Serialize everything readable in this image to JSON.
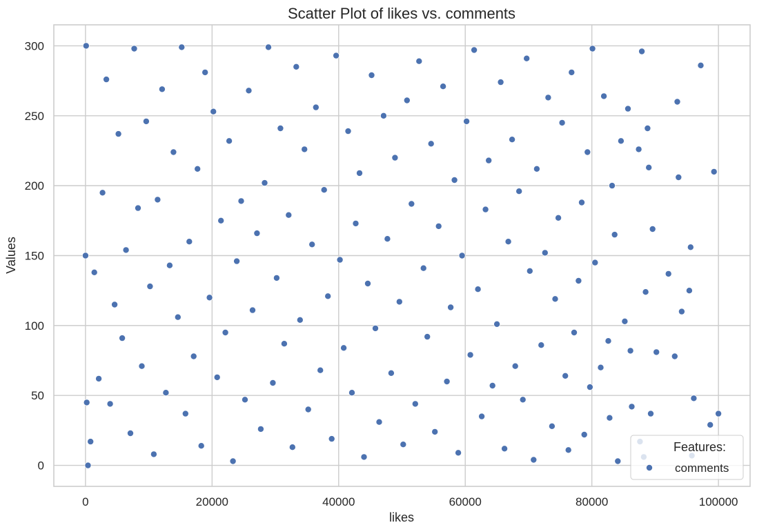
{
  "chart_data": {
    "type": "scatter",
    "title": "Scatter Plot of likes vs. comments",
    "xlabel": "likes",
    "ylabel": "Values",
    "xlim": [
      -5000,
      105000
    ],
    "ylim": [
      -15,
      315
    ],
    "x_ticks": [
      0,
      20000,
      40000,
      60000,
      80000,
      100000
    ],
    "y_ticks": [
      0,
      50,
      100,
      150,
      200,
      250,
      300
    ],
    "grid": true,
    "legend": {
      "title": "Features:",
      "placement": "bottom-right",
      "entries": [
        "comments"
      ]
    },
    "series": [
      {
        "name": "comments",
        "color": "#4c72b0",
        "marker": "circle",
        "x": [
          100000,
          99300,
          98700,
          97200,
          96100,
          95800,
          95600,
          95400,
          94200,
          93700,
          93500,
          93100,
          92100,
          90200,
          89600,
          89300,
          89000,
          88800,
          88500,
          88200,
          87900,
          87600,
          87400,
          86300,
          86100,
          85700,
          85200,
          84600,
          84100,
          83600,
          83200,
          82800,
          82600,
          81900,
          81400,
          80500,
          80100,
          79700,
          79300,
          78800,
          78400,
          77900,
          77200,
          76800,
          76300,
          75800,
          75300,
          74700,
          74200,
          73700,
          73100,
          72600,
          72000,
          71300,
          70800,
          70200,
          69700,
          69100,
          68500,
          67900,
          67400,
          66800,
          66200,
          65600,
          65000,
          64300,
          63700,
          63200,
          62600,
          62000,
          61400,
          60800,
          60200,
          59500,
          58900,
          58300,
          57700,
          57100,
          56500,
          55800,
          55200,
          54600,
          54000,
          53400,
          52700,
          52100,
          51500,
          50800,
          50200,
          49600,
          48900,
          48300,
          47700,
          47100,
          46400,
          45800,
          45200,
          44600,
          44000,
          43300,
          42700,
          42100,
          41500,
          40800,
          40200,
          39600,
          38900,
          38300,
          37700,
          37100,
          36400,
          35800,
          35200,
          34600,
          33900,
          33300,
          32700,
          32100,
          31400,
          30800,
          30200,
          29600,
          28900,
          28300,
          27700,
          27100,
          26400,
          25800,
          25200,
          24600,
          23900,
          23300,
          22700,
          22100,
          21400,
          20800,
          20200,
          19600,
          18900,
          18300,
          17700,
          17100,
          16400,
          15800,
          15200,
          14600,
          13900,
          13300,
          12700,
          12100,
          11400,
          10800,
          10200,
          9600,
          8900,
          8300,
          7700,
          7100,
          6400,
          5800,
          5200,
          4600,
          3900,
          3300,
          2700,
          2100,
          1400,
          800,
          400,
          200,
          100,
          0
        ],
        "y": [
          37,
          210,
          29,
          286,
          48,
          7,
          156,
          125,
          110,
          206,
          260,
          78,
          137,
          81,
          169,
          37,
          213,
          241,
          124,
          6,
          296,
          17,
          226,
          42,
          82,
          255,
          103,
          232,
          3,
          165,
          200,
          34,
          89,
          264,
          70,
          145,
          298,
          56,
          224,
          22,
          188,
          132,
          95,
          281,
          11,
          64,
          245,
          177,
          119,
          28,
          263,
          152,
          86,
          212,
          4,
          139,
          291,
          47,
          196,
          71,
          233,
          160,
          12,
          274,
          101,
          57,
          218,
          183,
          35,
          126,
          297,
          79,
          246,
          150,
          9,
          204,
          113,
          60,
          271,
          171,
          24,
          230,
          92,
          141,
          289,
          44,
          187,
          261,
          15,
          117,
          220,
          66,
          162,
          250,
          31,
          98,
          279,
          130,
          6,
          209,
          173,
          52,
          239,
          84,
          147,
          293,
          19,
          121,
          197,
          68,
          256,
          158,
          40,
          226,
          104,
          285,
          13,
          179,
          87,
          241,
          134,
          59,
          299,
          202,
          26,
          166,
          111,
          268,
          47,
          189,
          146,
          3,
          232,
          95,
          175,
          63,
          253,
          120,
          281,
          14,
          212,
          78,
          160,
          37,
          299,
          106,
          224,
          143,
          52,
          269,
          190,
          8,
          128,
          246,
          71,
          184,
          298,
          23,
          154,
          91,
          237,
          115,
          44,
          276,
          195,
          62,
          138,
          17,
          0,
          45,
          300,
          150
        ]
      }
    ]
  }
}
